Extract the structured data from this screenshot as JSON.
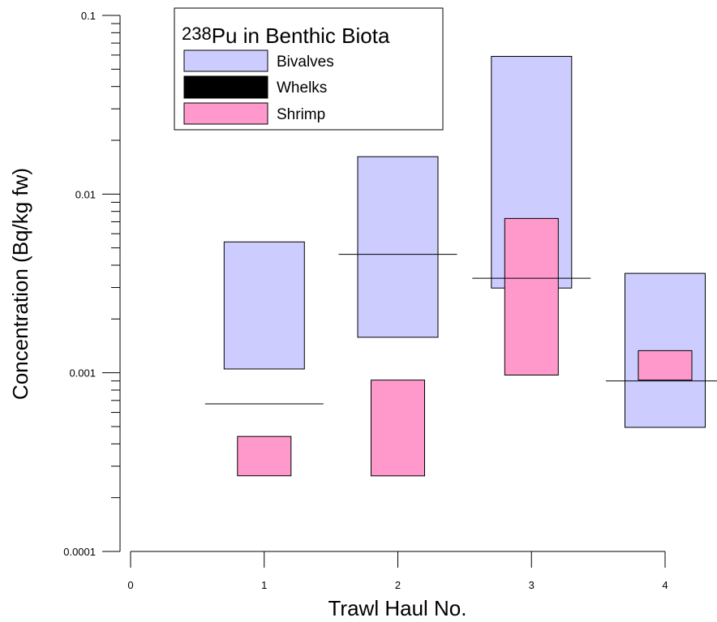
{
  "chart_data": {
    "type": "bar",
    "title_sup": "238",
    "title_main": "Pu in Benthic Biota",
    "xlabel": "Trawl Haul No.",
    "ylabel": "Concentration (Bq/kg fw)",
    "x_ticks": [
      "0",
      "1",
      "2",
      "3",
      "4"
    ],
    "xlim": [
      0,
      4
    ],
    "y_scale": "log",
    "ylim": [
      0.0001,
      0.1
    ],
    "y_tick_labels": [
      "0.1",
      "0.01",
      "0.001",
      "0.0001"
    ],
    "y_tick_values": [
      0.1,
      0.01,
      0.001,
      0.0001
    ],
    "legend_position": "top-left",
    "series": [
      {
        "name": "Bivalves",
        "kind": "range",
        "color": "#CCCCFF",
        "x": [
          1,
          2,
          3,
          4
        ],
        "low": [
          0.00105,
          0.00158,
          0.00298,
          0.000495
        ],
        "high": [
          0.0054,
          0.0162,
          0.059,
          0.0036
        ]
      },
      {
        "name": "Whelks",
        "kind": "line",
        "color": "#000000",
        "x": [
          1,
          2,
          3,
          4
        ],
        "values": [
          0.00067,
          0.0046,
          0.00338,
          0.0009
        ]
      },
      {
        "name": "Shrimp",
        "kind": "range",
        "color": "#FF99CC",
        "x": [
          1,
          2,
          3,
          4
        ],
        "low": [
          0.000265,
          0.000265,
          0.00097,
          0.00091
        ],
        "high": [
          0.00044,
          0.00091,
          0.0073,
          0.00133
        ]
      }
    ]
  }
}
